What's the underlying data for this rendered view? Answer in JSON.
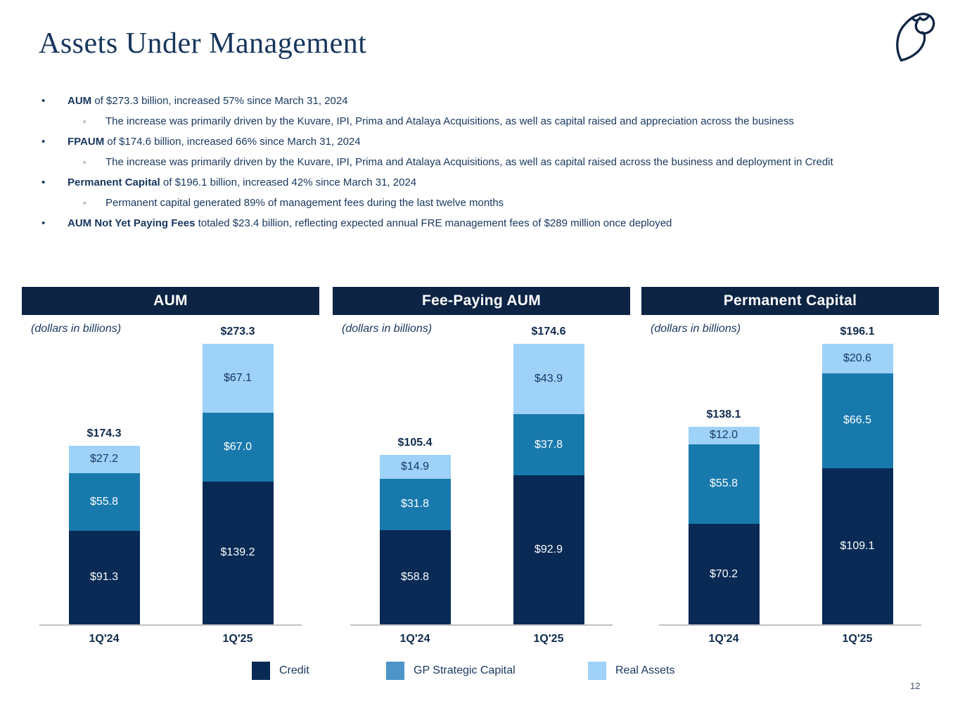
{
  "slide": {
    "title": "Assets Under Management",
    "page_number": "12",
    "logo_name": "owl-logo"
  },
  "bullets": {
    "items": [
      {
        "level": 1,
        "marker": "•",
        "lead": "AUM",
        "text": " of $273.3 billion, increased 57% since March 31, 2024"
      },
      {
        "level": 2,
        "marker": "◦",
        "lead": "",
        "text": "The increase was primarily driven by the Kuvare, IPI, Prima and Atalaya Acquisitions, as well as capital raised and appreciation across the business"
      },
      {
        "level": 1,
        "marker": "•",
        "lead": "FPAUM",
        "text": " of $174.6 billion, increased 66% since March 31, 2024"
      },
      {
        "level": 2,
        "marker": "◦",
        "lead": "",
        "text": "The increase was primarily driven by the Kuvare, IPI, Prima and Atalaya Acquisitions, as well as capital raised across the business and deployment in Credit"
      },
      {
        "level": 1,
        "marker": "•",
        "lead": "Permanent Capital",
        "text": " of $196.1 billion, increased 42% since March 31, 2024"
      },
      {
        "level": 2,
        "marker": "◦",
        "lead": "",
        "text": "Permanent capital generated 89% of management fees during the last twelve months"
      },
      {
        "level": 1,
        "marker": "•",
        "lead": "AUM Not Yet Paying Fees",
        "text": " totaled $23.4 billion, reflecting expected annual FRE management fees of $289 million once deployed"
      }
    ]
  },
  "colors": {
    "header_navy": "#0D2444",
    "credit": "#082A54",
    "gp_strategic_capital": "#1879AD",
    "real_assets": "#9ED2F8",
    "legend_gp_swatch": "#4D94C8",
    "axis_gray": "#C2C2C2",
    "text_navy": "#17375E"
  },
  "chart_data": [
    {
      "type": "bar",
      "stacked": true,
      "title": "AUM",
      "note": "(dollars in billions)",
      "categories": [
        "1Q'24",
        "1Q'25"
      ],
      "series": [
        {
          "name": "Credit",
          "values": [
            91.3,
            139.2
          ]
        },
        {
          "name": "GP Strategic Capital",
          "values": [
            55.8,
            67.0
          ]
        },
        {
          "name": "Real Assets",
          "values": [
            27.2,
            67.1
          ]
        }
      ],
      "totals": [
        174.3,
        273.3
      ],
      "total_labels": [
        "$174.3",
        "$273.3"
      ],
      "value_labels": [
        [
          "$91.3",
          "$139.2"
        ],
        [
          "$55.8",
          "$67.0"
        ],
        [
          "$27.2",
          "$67.1"
        ]
      ],
      "legend_position": "bottom",
      "grid": false
    },
    {
      "type": "bar",
      "stacked": true,
      "title": "Fee-Paying AUM",
      "note": "(dollars in billions)",
      "categories": [
        "1Q'24",
        "1Q'25"
      ],
      "series": [
        {
          "name": "Credit",
          "values": [
            58.8,
            92.9
          ]
        },
        {
          "name": "GP Strategic Capital",
          "values": [
            31.8,
            37.8
          ]
        },
        {
          "name": "Real Assets",
          "values": [
            14.9,
            43.9
          ]
        }
      ],
      "totals": [
        105.4,
        174.6
      ],
      "total_labels": [
        "$105.4",
        "$174.6"
      ],
      "value_labels": [
        [
          "$58.8",
          "$92.9"
        ],
        [
          "$31.8",
          "$37.8"
        ],
        [
          "$14.9",
          "$43.9"
        ]
      ],
      "legend_position": "bottom",
      "grid": false
    },
    {
      "type": "bar",
      "stacked": true,
      "title": "Permanent Capital",
      "note": "(dollars in billions)",
      "categories": [
        "1Q'24",
        "1Q'25"
      ],
      "series": [
        {
          "name": "Credit",
          "values": [
            70.2,
            109.1
          ]
        },
        {
          "name": "GP Strategic Capital",
          "values": [
            55.8,
            66.5
          ]
        },
        {
          "name": "Real Assets",
          "values": [
            12.0,
            20.6
          ]
        }
      ],
      "totals": [
        138.1,
        196.1
      ],
      "total_labels": [
        "$138.1",
        "$196.1"
      ],
      "value_labels": [
        [
          "$70.2",
          "$109.1"
        ],
        [
          "$55.8",
          "$66.5"
        ],
        [
          "$12.0",
          "$20.6"
        ]
      ],
      "legend_position": "bottom",
      "grid": false
    }
  ],
  "legend": {
    "items": [
      {
        "label": "Credit",
        "color": "#082A54"
      },
      {
        "label": "GP Strategic Capital",
        "color": "#4D94C8"
      },
      {
        "label": "Real Assets",
        "color": "#9ED2F8"
      }
    ]
  }
}
